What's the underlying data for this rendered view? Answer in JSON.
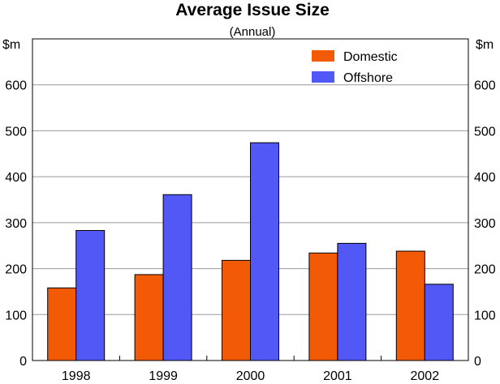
{
  "chart_data": {
    "type": "bar",
    "title": "Average Issue Size",
    "subtitle": "(Annual)",
    "ylabel_left": "$m",
    "ylabel_right": "$m",
    "xlabel": "",
    "categories": [
      "1998",
      "1999",
      "2000",
      "2001",
      "2002"
    ],
    "ylim": [
      0,
      700
    ],
    "yticks": [
      0,
      100,
      200,
      300,
      400,
      500,
      600
    ],
    "grid": true,
    "legend_position": "top-right",
    "series": [
      {
        "name": "Domestic",
        "color": "#f25a05",
        "values": [
          158,
          187,
          218,
          234,
          238
        ]
      },
      {
        "name": "Offshore",
        "color": "#5158f5",
        "values": [
          283,
          361,
          474,
          255,
          166
        ]
      }
    ]
  }
}
